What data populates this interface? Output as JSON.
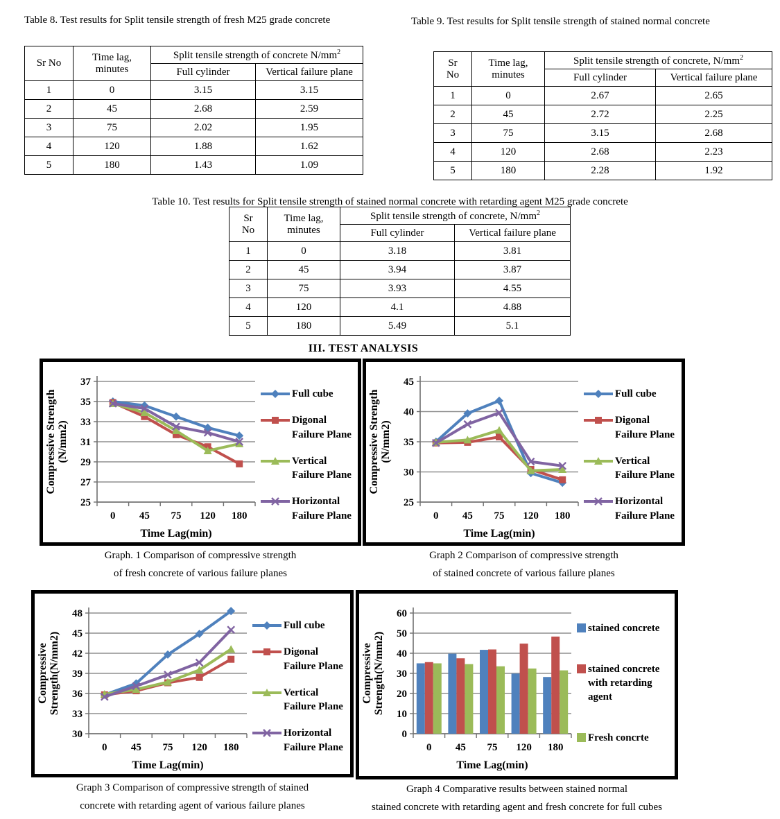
{
  "page": {
    "section_heading": "III. TEST ANALYSIS"
  },
  "tables": [
    {
      "caption": "Table 8. Test results for Split tensile strength of  fresh M25 grade concrete",
      "headers": {
        "sr": "Sr No",
        "time": "Time lag, minutes",
        "group": "Split tensile strength of concrete N/mm",
        "group_sup": "2",
        "col1": "Full cylinder",
        "col2": "Vertical failure plane"
      },
      "rows": [
        [
          "1",
          "0",
          "3.15",
          "3.15"
        ],
        [
          "2",
          "45",
          "2.68",
          "2.59"
        ],
        [
          "3",
          "75",
          "2.02",
          "1.95"
        ],
        [
          "4",
          "120",
          "1.88",
          "1.62"
        ],
        [
          "5",
          "180",
          "1.43",
          "1.09"
        ]
      ]
    },
    {
      "caption": "Table 9. Test results for Split tensile strength of stained normal concrete",
      "headers": {
        "sr": "Sr\nNo",
        "time": "Time lag, minutes",
        "group": "Split tensile strength of concrete, N/mm",
        "group_sup": "2",
        "col1": "Full cylinder",
        "col2": "Vertical failure plane"
      },
      "rows": [
        [
          "1",
          "0",
          "2.67",
          "2.65"
        ],
        [
          "2",
          "45",
          "2.72",
          "2.25"
        ],
        [
          "3",
          "75",
          "3.15",
          "2.68"
        ],
        [
          "4",
          "120",
          "2.68",
          "2.23"
        ],
        [
          "5",
          "180",
          "2.28",
          "1.92"
        ]
      ]
    },
    {
      "caption": "Table 10. Test results for Split tensile strength of stained normal concrete with retarding agent M25 grade concrete",
      "headers": {
        "sr": "Sr\nNo",
        "time": "Time lag, minutes",
        "group": "Split tensile strength of concrete, N/mm",
        "group_sup": "2",
        "col1": "Full cylinder",
        "col2": "Vertical failure plane"
      },
      "rows": [
        [
          "1",
          "0",
          "3.18",
          "3.81"
        ],
        [
          "2",
          "45",
          "3.94",
          "3.87"
        ],
        [
          "3",
          "75",
          "3.93",
          "4.55"
        ],
        [
          "4",
          "120",
          "4.1",
          "4.88"
        ],
        [
          "5",
          "180",
          "5.49",
          "5.1"
        ]
      ]
    }
  ],
  "charts": [
    {
      "caption": "Graph. 1 Comparison of compressive strength\nof fresh concrete of various failure planes",
      "chart_data": {
        "type": "line",
        "x_categories": [
          "0",
          "45",
          "75",
          "120",
          "180"
        ],
        "xlabel": "Time Lag(min)",
        "ylabel": "Compressive Strength\n(N/mm2)",
        "ymin": 25,
        "ymax": 37,
        "ystep": 2,
        "grid": true,
        "legend_position": "right",
        "series": [
          {
            "name": "Full cube",
            "color": "#4F81BD",
            "marker": "diamond",
            "values": [
              35,
              34.6,
              33.5,
              32.4,
              31.6
            ]
          },
          {
            "name": "Digonal Failure Plane",
            "color": "#C0504D",
            "marker": "square",
            "values": [
              34.9,
              33.5,
              31.7,
              30.5,
              28.8
            ]
          },
          {
            "name": "Vertical Failure Plane",
            "color": "#9BBB59",
            "marker": "triangle",
            "values": [
              34.8,
              33.9,
              32.1,
              30.1,
              30.8
            ]
          },
          {
            "name": "Horizontal Failure Plane",
            "color": "#8064A2",
            "marker": "x",
            "values": [
              34.8,
              34.3,
              32.5,
              31.9,
              31
            ]
          }
        ]
      }
    },
    {
      "caption": "Graph 2 Comparison of compressive strength\nof stained concrete of various failure planes",
      "chart_data": {
        "type": "line",
        "x_categories": [
          "0",
          "45",
          "75",
          "120",
          "180"
        ],
        "xlabel": "Time Lag(min)",
        "ylabel": "Compressive Strength\n(N/mm2)",
        "ymin": 25,
        "ymax": 45,
        "ystep": 5,
        "grid": true,
        "legend_position": "right",
        "series": [
          {
            "name": "Full cube",
            "color": "#4F81BD",
            "marker": "diamond",
            "values": [
              35,
              39.7,
              41.8,
              29.8,
              28.2
            ]
          },
          {
            "name": "Digonal Failure Plane",
            "color": "#C0504D",
            "marker": "square",
            "values": [
              34.8,
              34.9,
              35.8,
              30.4,
              28.7
            ]
          },
          {
            "name": "Vertical Failure Plane",
            "color": "#9BBB59",
            "marker": "triangle",
            "values": [
              34.9,
              35.3,
              36.9,
              30.2,
              30.4
            ]
          },
          {
            "name": "Horizontal Failure Plane",
            "color": "#8064A2",
            "marker": "x",
            "values": [
              34.8,
              37.9,
              39.8,
              31.7,
              31
            ]
          }
        ]
      }
    },
    {
      "caption": "Graph 3 Comparison of compressive strength of stained\nconcrete with retarding agent of various failure planes",
      "chart_data": {
        "type": "line",
        "x_categories": [
          "0",
          "45",
          "75",
          "120",
          "180"
        ],
        "xlabel": "Time Lag(min)",
        "ylabel": "Compressive\nStrength(N/mm2)",
        "ymin": 30,
        "ymax": 48,
        "ystep": 3,
        "grid": true,
        "legend_position": "right",
        "series": [
          {
            "name": "Full cube",
            "color": "#4F81BD",
            "marker": "diamond",
            "values": [
              35.8,
              37.5,
              41.8,
              44.9,
              48.3
            ]
          },
          {
            "name": "Digonal Failure Plane",
            "color": "#C0504D",
            "marker": "square",
            "values": [
              35.8,
              36.4,
              37.6,
              38.4,
              41.1
            ]
          },
          {
            "name": "Vertical Failure Plane",
            "color": "#9BBB59",
            "marker": "triangle",
            "values": [
              35.9,
              36.6,
              37.7,
              39.5,
              42.6
            ]
          },
          {
            "name": "Horizontal Failure Plane",
            "color": "#8064A2",
            "marker": "x",
            "values": [
              35.5,
              37.1,
              38.8,
              40.6,
              45.5
            ]
          }
        ]
      }
    },
    {
      "caption": "Graph 4 Comparative results between stained normal\nstained concrete with retarding agent and fresh concrete for full cubes",
      "chart_data": {
        "type": "bar",
        "x_categories": [
          "0",
          "45",
          "75",
          "120",
          "180"
        ],
        "xlabel": "Time Lag(min)",
        "ylabel": "Compressive\nStrength(N/mm2)",
        "ymin": 0,
        "ymax": 60,
        "ystep": 10,
        "grid": true,
        "legend_position": "right",
        "series": [
          {
            "name": "stained concrete",
            "color": "#4F81BD",
            "values": [
              35,
              39.8,
              41.7,
              29.9,
              28.2
            ]
          },
          {
            "name": "stained concrete with retarding agent",
            "color": "#C0504D",
            "values": [
              35.6,
              37.5,
              41.9,
              44.8,
              48.3
            ]
          },
          {
            "name": "Fresh concrte",
            "color": "#9BBB59",
            "values": [
              35,
              34.6,
              33.5,
              32.4,
              31.5
            ]
          }
        ]
      }
    }
  ]
}
